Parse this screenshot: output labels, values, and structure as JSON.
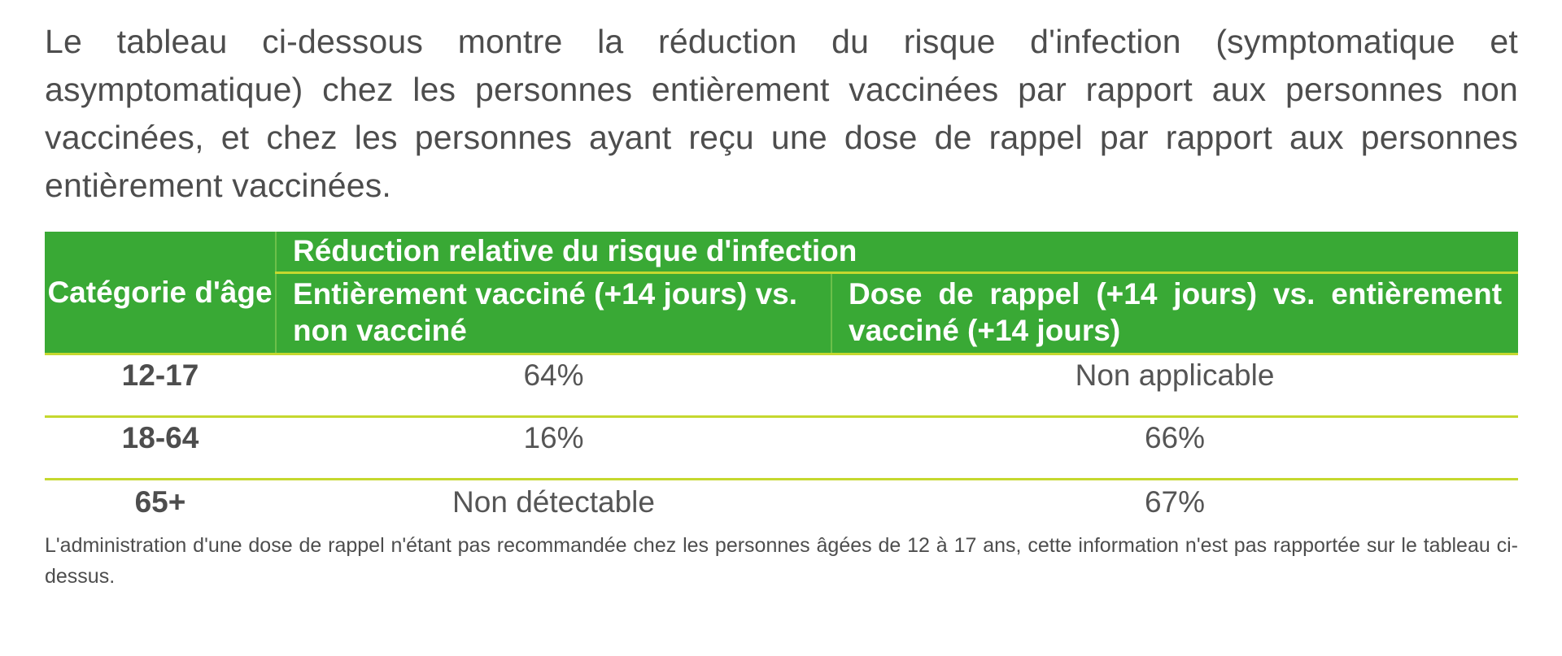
{
  "intro_text": "Le tableau ci-dessous montre la réduction du risque d'infection (symptomatique et asymptomatique) chez les personnes entièrement vaccinées par rapport aux personnes non vaccinées, et chez les personnes ayant reçu une dose de rappel par rapport aux personnes entièrement vaccinées.",
  "table": {
    "age_header": "Catégorie d'âge",
    "group_header": "Réduction relative du risque d'infection",
    "col_full_header": "Entièrement vacciné (+14 jours) vs. non vacciné",
    "col_boost_header": "Dose de rappel (+14 jours) vs. entièrement vacciné (+14 jours)",
    "rows": [
      {
        "age": "12-17",
        "full": "64%",
        "boost": "Non applicable"
      },
      {
        "age": "18-64",
        "full": "16%",
        "boost": "66%"
      },
      {
        "age": "65+",
        "full": "Non détectable",
        "boost": "67%"
      }
    ]
  },
  "footnote": "L'administration d'une dose de rappel n'étant pas recommandée chez les personnes âgées de 12 à 17 ans, cette information n'est pas rapportée sur le tableau ci-dessus.",
  "colors": {
    "header_green": "#39a935",
    "divider_lime": "#c5d82f",
    "text_gray": "#4d4d4d"
  }
}
